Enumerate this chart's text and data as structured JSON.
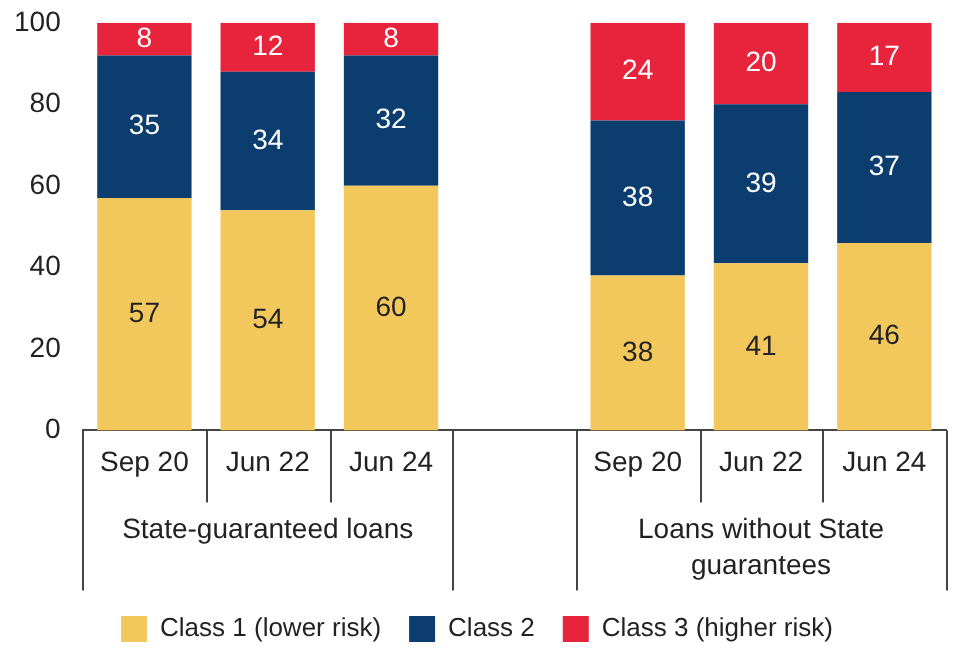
{
  "chart_data": {
    "type": "bar",
    "stacked": true,
    "data_labels": true,
    "legend": "bottom",
    "grid": false,
    "categories": [
      "Sep 20",
      "Jun 22",
      "Jun 24",
      null,
      "Sep 20",
      "Jun 22",
      "Jun 24"
    ],
    "series": [
      {
        "name": "Class 1 (lower risk)",
        "color": "#f2c75c",
        "values": [
          57,
          54,
          60,
          null,
          38,
          41,
          46
        ]
      },
      {
        "name": "Class 2",
        "color": "#0b3d6e",
        "values": [
          35,
          34,
          32,
          null,
          38,
          39,
          37
        ]
      },
      {
        "name": "Class 3 (higher risk)",
        "color": "#e8233c",
        "values": [
          8,
          12,
          8,
          null,
          24,
          20,
          17
        ]
      }
    ],
    "ylim": [
      0,
      100
    ],
    "yticks": [
      0,
      20,
      40,
      60,
      80,
      100
    ],
    "annotations": [
      "State-guaranteed loans",
      "Loans without State guarantees"
    ]
  }
}
